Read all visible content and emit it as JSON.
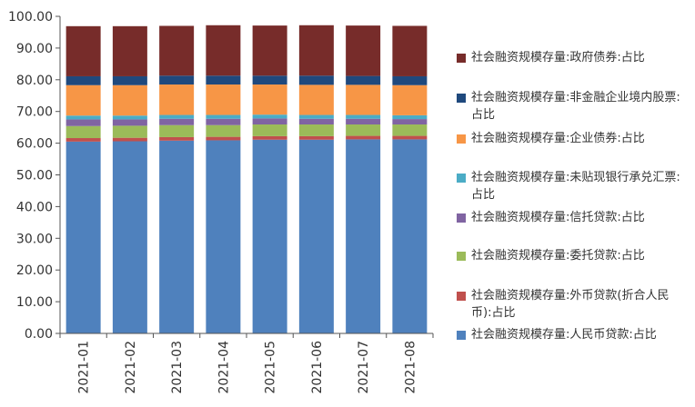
{
  "chart_data": {
    "type": "bar",
    "stacked": true,
    "categories": [
      "2021-01",
      "2021-02",
      "2021-03",
      "2021-04",
      "2021-05",
      "2021-06",
      "2021-07",
      "2021-08"
    ],
    "ylim": [
      0,
      100
    ],
    "yticks": [
      "0.00",
      "10.00",
      "20.00",
      "30.00",
      "40.00",
      "50.00",
      "60.00",
      "70.00",
      "80.00",
      "90.00",
      "100.00"
    ],
    "grid": false,
    "legend_position": "right",
    "series": [
      {
        "name": "社会融资规模存量:人民币贷款:占比",
        "color": "#4f81bd",
        "values": [
          60.5,
          60.6,
          60.8,
          60.9,
          61.1,
          61.1,
          61.2,
          61.2
        ]
      },
      {
        "name": "社会融资规模存量:外币贷款(折合人民币):占比",
        "color": "#c0504d",
        "values": [
          1.1,
          1.1,
          1.1,
          1.1,
          1.1,
          1.1,
          1.1,
          1.1
        ]
      },
      {
        "name": "社会融资规模存量:委托贷款:占比",
        "color": "#9bbb59",
        "values": [
          3.8,
          3.8,
          3.8,
          3.7,
          3.7,
          3.7,
          3.6,
          3.6
        ]
      },
      {
        "name": "社会融资规模存量:信托贷款:占比",
        "color": "#8064a2",
        "values": [
          2.1,
          2.0,
          2.0,
          2.0,
          1.9,
          1.8,
          1.8,
          1.7
        ]
      },
      {
        "name": "社会融资规模存量:未贴现银行承兑汇票:占比",
        "color": "#4bacc6",
        "values": [
          1.2,
          1.2,
          1.2,
          1.2,
          1.2,
          1.2,
          1.2,
          1.2
        ]
      },
      {
        "name": "社会融资规模存量:企业债券:占比",
        "color": "#f79646",
        "values": [
          9.6,
          9.6,
          9.6,
          9.6,
          9.5,
          9.5,
          9.5,
          9.5
        ]
      },
      {
        "name": "社会融资规模存量:非金融企业境内股票:占比",
        "color": "#1f497d",
        "values": [
          2.8,
          2.8,
          2.8,
          2.8,
          2.8,
          2.9,
          2.8,
          2.8
        ]
      },
      {
        "name": "社会融资规模存量:政府债券:占比",
        "color": "#772c2a",
        "values": [
          15.8,
          15.8,
          15.7,
          15.9,
          15.8,
          15.9,
          15.9,
          15.9
        ]
      }
    ]
  }
}
